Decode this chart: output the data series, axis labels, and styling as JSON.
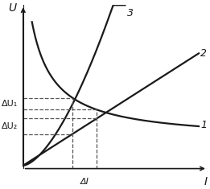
{
  "xlabel": "I",
  "ylabel": "U",
  "curve1_label": "1",
  "curve2_label": "2",
  "curve3_label": "3",
  "delta_I_label": "ΔI",
  "delta_U1_label": "ΔU₁",
  "delta_U2_label": "ΔU₂",
  "background_color": "#ffffff",
  "line_color": "#1a1a1a",
  "dashed_color": "#555555",
  "figsize": [
    2.61,
    2.35
  ],
  "dpi": 100,
  "xA": 0.28,
  "xB": 0.42,
  "xlim": [
    0.0,
    1.05
  ],
  "ylim": [
    0.0,
    1.05
  ]
}
